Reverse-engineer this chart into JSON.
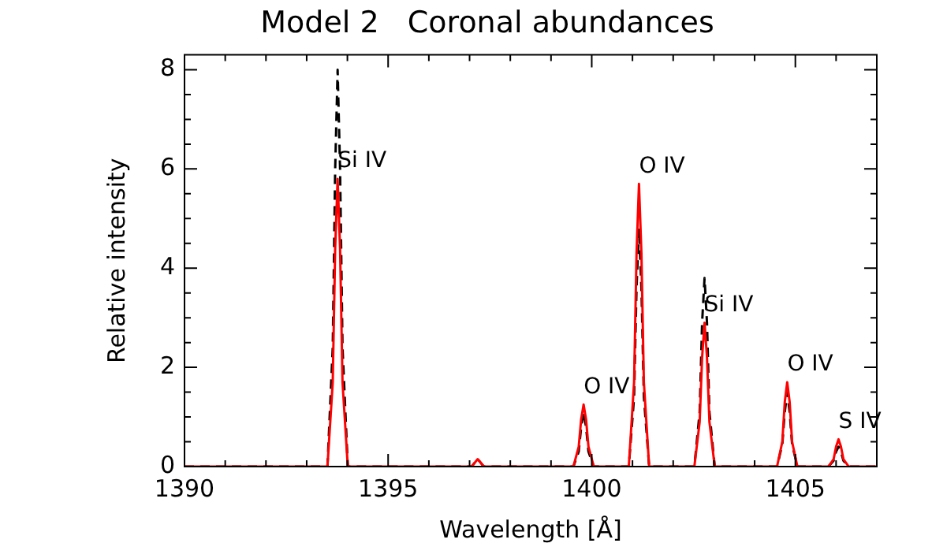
{
  "chart_data": {
    "type": "line",
    "title": "Model 2   Coronal abundances",
    "xlabel": "Wavelength [Å]",
    "ylabel": "Relative intensity",
    "x": [
      1390,
      1393.51,
      1393.64,
      1393.7,
      1393.76,
      1393.82,
      1393.88,
      1394.01,
      1397.05,
      1397.2,
      1397.35,
      1399.55,
      1399.68,
      1399.74,
      1399.8,
      1399.86,
      1399.92,
      1400.05,
      1400.91,
      1401.04,
      1401.1,
      1401.16,
      1401.22,
      1401.28,
      1401.41,
      1402.52,
      1402.65,
      1402.71,
      1402.77,
      1402.83,
      1402.89,
      1403.02,
      1404.55,
      1404.68,
      1404.74,
      1404.8,
      1404.86,
      1404.92,
      1405.05,
      1405.81,
      1405.94,
      1406.0,
      1406.06,
      1406.12,
      1406.18,
      1406.31,
      1407
    ],
    "series": [
      {
        "color": "#ff0000",
        "line_style": "solid",
        "values": [
          0,
          0,
          1.7,
          4.4,
          5.8,
          4.4,
          1.7,
          0,
          0,
          0.15,
          0,
          0,
          0.4,
          0.95,
          1.25,
          0.95,
          0.4,
          0,
          0,
          1.7,
          4.3,
          5.7,
          4.3,
          1.7,
          0,
          0,
          0.9,
          2.2,
          2.9,
          2.2,
          0.9,
          0,
          0,
          0.5,
          1.3,
          1.7,
          1.3,
          0.5,
          0,
          0,
          0.15,
          0.4,
          0.55,
          0.4,
          0.15,
          0,
          0
        ]
      },
      {
        "color": "#000000",
        "line_style": "dashed",
        "values": [
          0,
          0,
          2.4,
          6,
          8,
          6,
          2.4,
          0,
          0,
          0.15,
          0,
          0,
          0.3,
          0.8,
          1.1,
          0.8,
          0.3,
          0,
          0,
          1.4,
          3.6,
          4.8,
          3.6,
          1.4,
          0,
          0,
          1.1,
          2.9,
          3.8,
          2.9,
          1.1,
          0,
          0,
          0.45,
          1.1,
          1.5,
          1.1,
          0.45,
          0,
          0,
          0.12,
          0.3,
          0.4,
          0.3,
          0.12,
          0,
          0
        ]
      }
    ],
    "xlim": [
      1390,
      1407
    ],
    "xticks": [
      1390,
      {
        "value": 1391,
        "label": null
      },
      {
        "value": 1392,
        "label": null
      },
      {
        "value": 1393,
        "label": null
      },
      {
        "value": 1394,
        "label": null
      },
      1395,
      {
        "value": 1396,
        "label": null
      },
      {
        "value": 1397,
        "label": null
      },
      {
        "value": 1398,
        "label": null
      },
      {
        "value": 1399,
        "label": null
      },
      1400,
      {
        "value": 1401,
        "label": null
      },
      {
        "value": 1402,
        "label": null
      },
      {
        "value": 1403,
        "label": null
      },
      {
        "value": 1404,
        "label": null
      },
      1405,
      {
        "value": 1406,
        "label": null
      }
    ],
    "ylim": [
      0,
      8.3
    ],
    "yticks": [
      0,
      {
        "value": 0.5,
        "label": null
      },
      {
        "value": 1,
        "label": null
      },
      {
        "value": 1.5,
        "label": null
      },
      2,
      {
        "value": 2.5,
        "label": null
      },
      {
        "value": 3,
        "label": null
      },
      {
        "value": 3.5,
        "label": null
      },
      4,
      {
        "value": 4.5,
        "label": null
      },
      {
        "value": 5,
        "label": null
      },
      {
        "value": 5.5,
        "label": null
      },
      6,
      {
        "value": 6.5,
        "label": null
      },
      {
        "value": 7,
        "label": null
      },
      {
        "value": 7.5,
        "label": null
      },
      8
    ],
    "grid": false,
    "legend": false,
    "marker": "none",
    "annotations": [
      {
        "text": "Si IV",
        "x": 1393.76,
        "y": 5.8
      },
      {
        "text": "O IV",
        "x": 1399.8,
        "y": 1.25
      },
      {
        "text": "O IV",
        "x": 1401.16,
        "y": 5.7
      },
      {
        "text": "Si IV",
        "x": 1402.77,
        "y": 2.9
      },
      {
        "text": "O IV",
        "x": 1404.8,
        "y": 1.7
      },
      {
        "text": "S IV",
        "x": 1406.06,
        "y": 0.55
      }
    ]
  }
}
